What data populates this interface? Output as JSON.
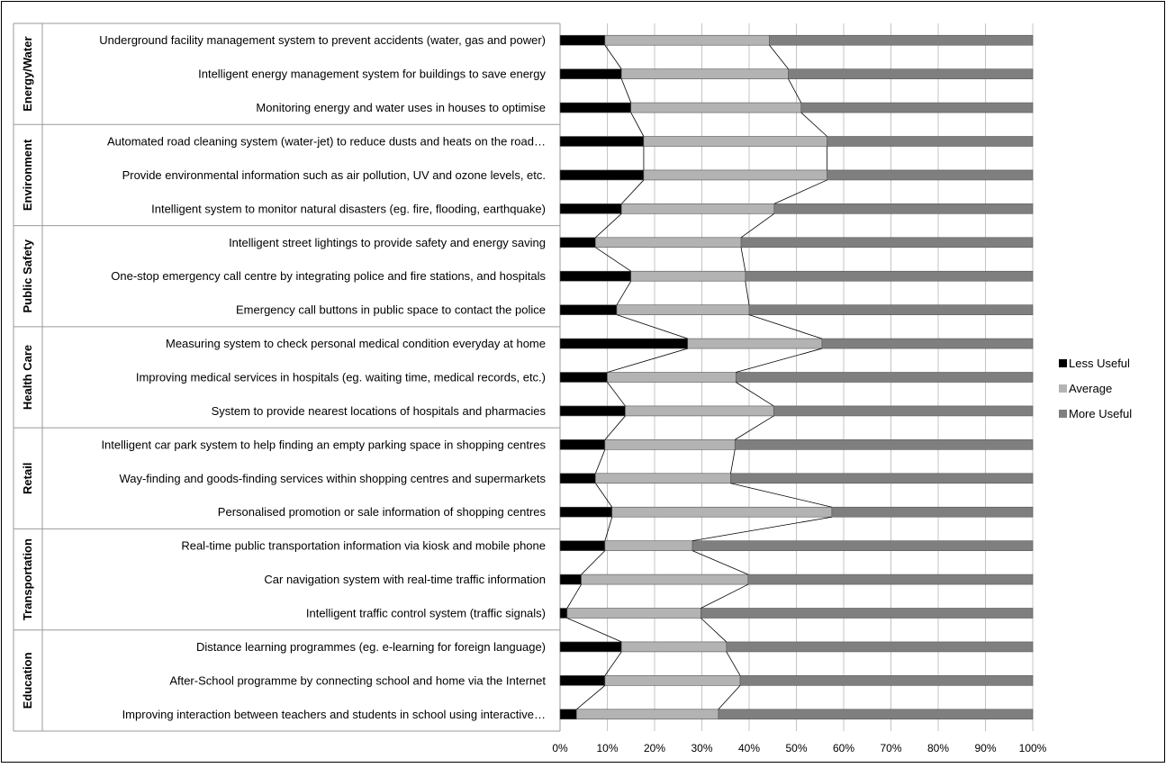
{
  "chart_data": {
    "type": "bar",
    "stacked": "percent",
    "orientation": "horizontal",
    "groups": [
      {
        "name": "Energy/Water",
        "categories": [
          "Underground facility management system to prevent accidents (water, gas and power)",
          "Intelligent  energy management system for buildings to save energy",
          "Monitoring energy and water uses in houses to optimise"
        ]
      },
      {
        "name": "Environment",
        "categories": [
          "Automated road cleaning system (water-jet) to reduce dusts and heats on the road…",
          "Provide environmental information such as air pollution, UV and ozone levels, etc.",
          "Intelligent system to monitor natural disasters (eg. fire, flooding, earthquake)"
        ]
      },
      {
        "name": "Public Safety",
        "categories": [
          "Intelligent street lightings to provide safety and energy saving",
          "One-stop emergency call centre by integrating  police and fire stations, and hospitals",
          "Emergency call buttons in public space to contact the police"
        ]
      },
      {
        "name": "Health Care",
        "categories": [
          "Measuring system to check personal medical condition everyday at home",
          "Improving medical services in hospitals (eg. waiting time, medical records, etc.)",
          "System to provide nearest locations of hospitals and pharmacies"
        ]
      },
      {
        "name": "Retail",
        "categories": [
          "Intelligent  car park system to help finding an empty parking space in shopping centres",
          "Way-finding and goods-finding services within shopping centres and supermarkets",
          "Personalised promotion or sale information of shopping centres"
        ]
      },
      {
        "name": "Transportation",
        "categories": [
          "Real-time public transportation information via kiosk and mobile phone",
          "Car navigation system with real-time traffic information",
          "Intelligent traffic control system (traffic signals)"
        ]
      },
      {
        "name": "Education",
        "categories": [
          "Distance learning programmes (eg. e-learning for foreign language)",
          "After-School programme by connecting school and home via the Internet",
          "Improving interaction between teachers and students in school using interactive…"
        ]
      }
    ],
    "series": [
      {
        "name": "Less Useful",
        "color": "#000000",
        "values": [
          9.5,
          13,
          15,
          17.7,
          17.7,
          13,
          7.5,
          15,
          12,
          27,
          10,
          13.8,
          9.5,
          7.5,
          11,
          9.5,
          4.5,
          1.5,
          13,
          9.5,
          3.5
        ]
      },
      {
        "name": "Average",
        "color": "#b3b3b3",
        "values": [
          34.8,
          35.3,
          36,
          38.8,
          38.8,
          32.3,
          30.8,
          24.2,
          28,
          28.4,
          27.2,
          31.4,
          27.5,
          28.6,
          46.5,
          18.5,
          35.3,
          28.3,
          22.2,
          28.6,
          30
        ]
      },
      {
        "name": "More Useful",
        "color": "#7f7f7f",
        "values": [
          55.7,
          51.7,
          49,
          43.5,
          43.5,
          54.7,
          61.7,
          60.8,
          60,
          44.6,
          62.8,
          54.8,
          63,
          63.9,
          42.5,
          72,
          60.2,
          70.2,
          64.8,
          61.9,
          66.5
        ]
      }
    ],
    "x_ticks": [
      "0%",
      "10%",
      "20%",
      "30%",
      "40%",
      "50%",
      "60%",
      "70%",
      "80%",
      "90%",
      "100%"
    ],
    "xlim": [
      0,
      100
    ],
    "grid": true,
    "series_lines": true,
    "legend": "right"
  }
}
